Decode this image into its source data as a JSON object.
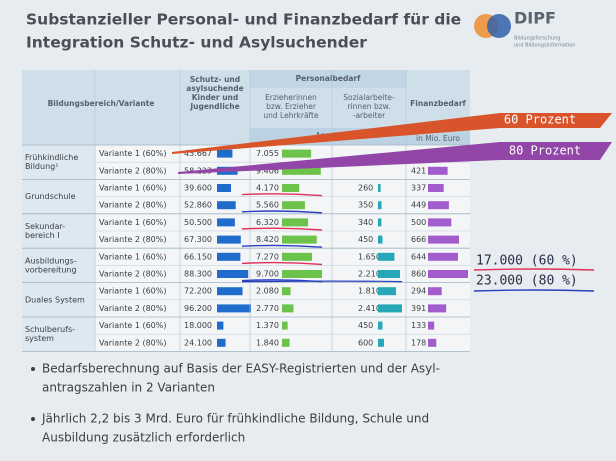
{
  "header": {
    "title": [
      "Substanzieller Personal- und Finanzbedarf für die",
      "Integration Schutz- und Asylsuchender"
    ],
    "logo": "DIPF",
    "logo_subtitle": [
      "Bildungsforschung",
      "und Bildungsinformation"
    ]
  },
  "table": {
    "headers": {
      "bereich": "Bildungsbereich/Variante",
      "schutz": [
        "Schutz- und",
        "asylsuchende",
        "Kinder und",
        "Jugendliche"
      ],
      "personal": "Personalbedarf",
      "erzieher": [
        "Erzieherinnen",
        "bzw. Erzieher",
        "und Lehrkräfte"
      ],
      "sozial": [
        "Sozialarbeite-",
        "rinnen bzw.",
        "-arbeiter"
      ],
      "finanz": "Finanzbedarf",
      "anzahl": "Anzahl",
      "mio": "in Mio. Euro"
    },
    "groups": [
      {
        "label": [
          "Frühkindliche",
          "Bildung¹"
        ],
        "rows": [
          {
            "variant": "Variante 1 (60%)",
            "cells": [
              "43.667",
              "7.055",
              null,
              null
            ]
          },
          {
            "variant": "Variante 2 (80%)",
            "cells": [
              "58.223",
              "9.406",
              null,
              "421"
            ]
          }
        ]
      },
      {
        "label": [
          "Grundschule"
        ],
        "rows": [
          {
            "variant": "Variante 1 (60%)",
            "cells": [
              "39.600",
              "4.170",
              "260",
              "337"
            ]
          },
          {
            "variant": "Variante 2 (80%)",
            "cells": [
              "52.860",
              "5.560",
              "350",
              "449"
            ]
          }
        ]
      },
      {
        "label": [
          "Sekundar-",
          "bereich I"
        ],
        "rows": [
          {
            "variant": "Variante 1 (60%)",
            "cells": [
              "50.500",
              "6.320",
              "340",
              "500"
            ]
          },
          {
            "variant": "Variante 2 (80%)",
            "cells": [
              "67.300",
              "8.420",
              "450",
              "666"
            ]
          }
        ]
      },
      {
        "label": [
          "Ausbildungs-",
          "vorbereitung"
        ],
        "rows": [
          {
            "variant": "Variante 1 (60%)",
            "cells": [
              "66.150",
              "7.270",
              "1.650",
              "644"
            ]
          },
          {
            "variant": "Variante 2 (80%)",
            "cells": [
              "88.300",
              "9.700",
              "2.210",
              "860"
            ]
          }
        ]
      },
      {
        "label": [
          "Duales System"
        ],
        "rows": [
          {
            "variant": "Variante 1 (60%)",
            "cells": [
              "72.200",
              "2.080",
              "1.810",
              "294"
            ]
          },
          {
            "variant": "Variante 2 (80%)",
            "cells": [
              "96.200",
              "2.770",
              "2.410",
              "391"
            ]
          }
        ]
      },
      {
        "label": [
          "Schulberufs-",
          "system"
        ],
        "rows": [
          {
            "variant": "Variante 1 (60%)",
            "cells": [
              "18.000",
              "1.370",
              "450",
              "133"
            ]
          },
          {
            "variant": "Variante 2 (80%)",
            "cells": [
              "24.100",
              "1.840",
              "600",
              "178"
            ]
          }
        ]
      }
    ]
  },
  "annotations": {
    "arrow_60": "60 Prozent",
    "arrow_80": "80 Prozent",
    "note_60": "17.000 (60 %)",
    "note_80": "23.000 (80 %)"
  },
  "bullets": [
    [
      "Bedarfsberechnung auf Basis der EASY-Registrierten und der Asyl-",
      "antragszahlen in 2 Varianten"
    ],
    [
      "Jährlich 2,2 bis 3 Mrd. Euro für frühkindliche Bildung, Schule und",
      "Ausbildung zusätzlich erforderlich"
    ]
  ]
}
